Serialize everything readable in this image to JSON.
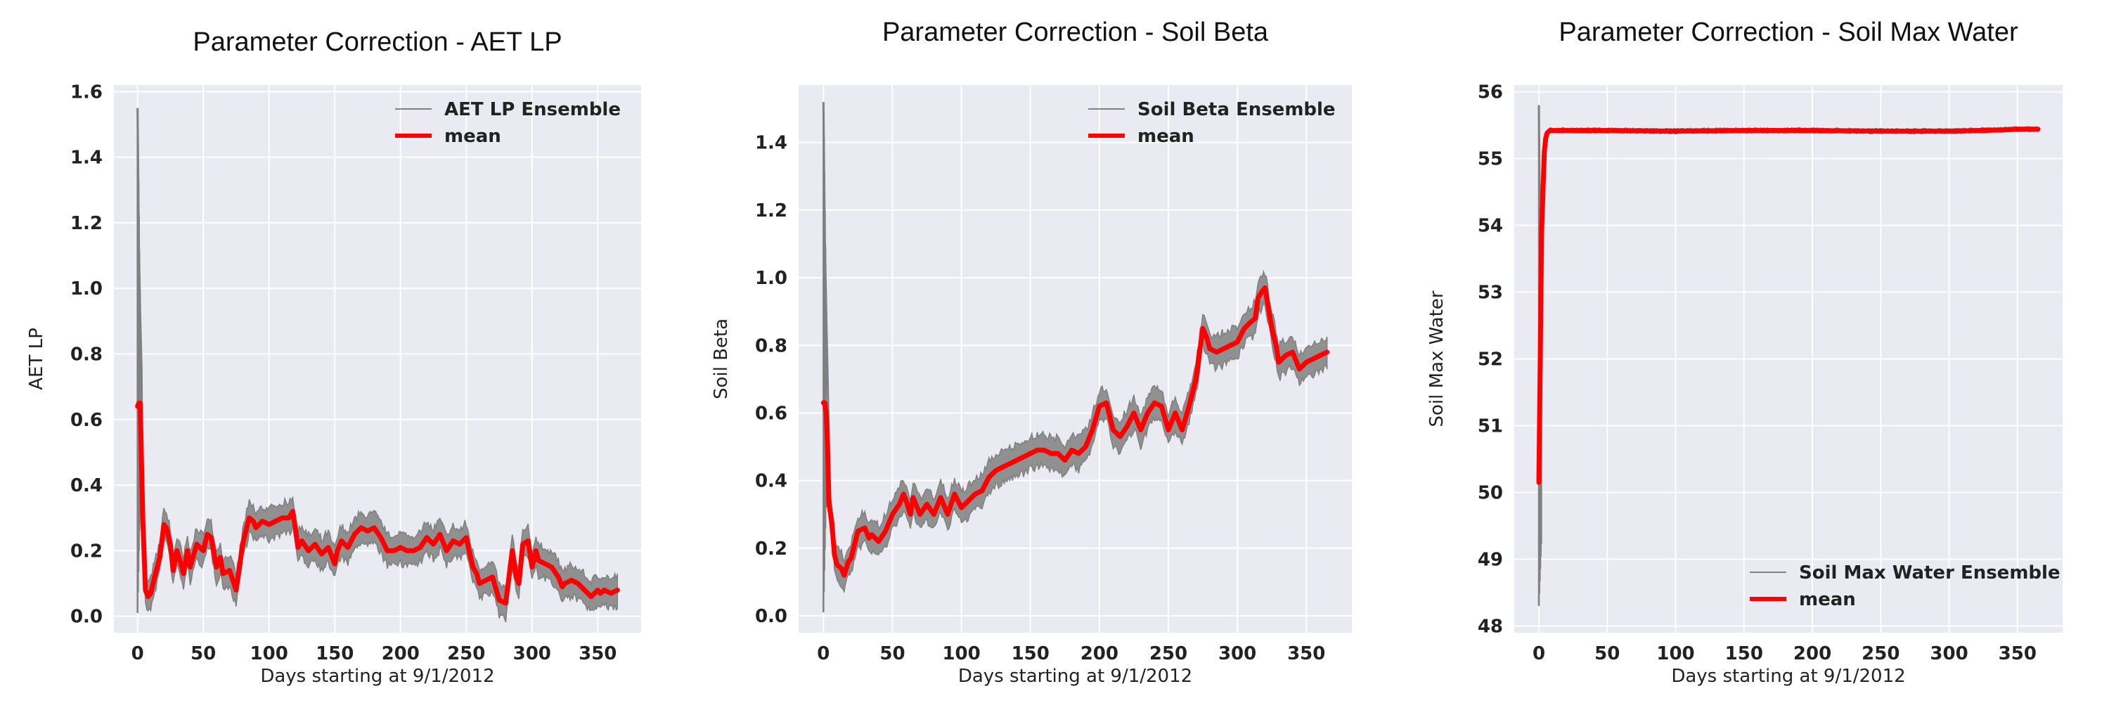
{
  "colors": {
    "panel_bg": "#eaeaf2",
    "grid": "#ffffff",
    "ensemble": "#808080",
    "mean": "#ff0000"
  },
  "chart_data": [
    {
      "type": "line",
      "title": "Parameter Correction - AET LP",
      "xlabel": "Days starting at 9/1/2012",
      "ylabel": "AET LP",
      "xlim": [
        -18,
        383
      ],
      "ylim": [
        -0.05,
        1.62
      ],
      "xticks": [
        0,
        50,
        100,
        150,
        200,
        250,
        300,
        350
      ],
      "yticks": [
        0.0,
        0.2,
        0.4,
        0.6,
        0.8,
        1.0,
        1.2,
        1.4,
        1.6
      ],
      "ytick_labels": [
        "0.0",
        "0.2",
        "0.4",
        "0.6",
        "0.8",
        "1.0",
        "1.2",
        "1.4",
        "1.6"
      ],
      "grid": true,
      "legend_position": "top-right",
      "spread": 0.035,
      "spike": {
        "min": 0.01,
        "max": 1.55
      },
      "series": [
        {
          "name": "AET LP Ensemble",
          "role": "ensemble"
        },
        {
          "name": "mean",
          "role": "mean",
          "x": [
            0,
            1,
            2,
            4,
            6,
            8,
            10,
            13,
            17,
            20,
            22,
            25,
            27,
            30,
            33,
            35,
            38,
            40,
            45,
            50,
            53,
            56,
            60,
            63,
            65,
            70,
            75,
            80,
            83,
            85,
            88,
            90,
            95,
            100,
            105,
            110,
            115,
            118,
            120,
            122,
            125,
            130,
            135,
            140,
            145,
            150,
            152,
            155,
            160,
            165,
            170,
            175,
            180,
            185,
            190,
            195,
            200,
            205,
            210,
            215,
            220,
            225,
            230,
            235,
            240,
            245,
            250,
            255,
            258,
            260,
            265,
            270,
            275,
            280,
            285,
            288,
            290,
            293,
            297,
            300,
            303,
            305,
            310,
            315,
            320,
            323,
            325,
            330,
            335,
            340,
            345,
            350,
            352,
            355,
            360,
            365
          ],
          "y": [
            0.64,
            0.65,
            0.65,
            0.3,
            0.08,
            0.06,
            0.07,
            0.12,
            0.18,
            0.28,
            0.27,
            0.22,
            0.14,
            0.2,
            0.16,
            0.13,
            0.2,
            0.15,
            0.22,
            0.2,
            0.25,
            0.24,
            0.15,
            0.18,
            0.13,
            0.14,
            0.08,
            0.22,
            0.27,
            0.3,
            0.29,
            0.27,
            0.29,
            0.28,
            0.29,
            0.3,
            0.3,
            0.32,
            0.27,
            0.21,
            0.23,
            0.2,
            0.22,
            0.19,
            0.21,
            0.16,
            0.2,
            0.23,
            0.21,
            0.25,
            0.27,
            0.26,
            0.27,
            0.24,
            0.2,
            0.2,
            0.21,
            0.2,
            0.2,
            0.21,
            0.24,
            0.22,
            0.25,
            0.2,
            0.23,
            0.22,
            0.24,
            0.15,
            0.13,
            0.1,
            0.11,
            0.12,
            0.05,
            0.04,
            0.2,
            0.12,
            0.1,
            0.22,
            0.23,
            0.15,
            0.2,
            0.17,
            0.16,
            0.15,
            0.12,
            0.09,
            0.1,
            0.11,
            0.1,
            0.08,
            0.06,
            0.08,
            0.07,
            0.08,
            0.07,
            0.08
          ]
        }
      ]
    },
    {
      "type": "line",
      "title": "Parameter Correction - Soil Beta",
      "xlabel": "Days starting at 9/1/2012",
      "ylabel": "Soil Beta",
      "xlim": [
        -18,
        383
      ],
      "ylim": [
        -0.05,
        1.57
      ],
      "xticks": [
        0,
        50,
        100,
        150,
        200,
        250,
        300,
        350
      ],
      "yticks": [
        0.0,
        0.2,
        0.4,
        0.6,
        0.8,
        1.0,
        1.2,
        1.4
      ],
      "ytick_labels": [
        "0.0",
        "0.2",
        "0.4",
        "0.6",
        "0.8",
        "1.0",
        "1.2",
        "1.4"
      ],
      "grid": true,
      "legend_position": "top-right",
      "spread": 0.035,
      "spike": {
        "min": 0.01,
        "max": 1.52
      },
      "series": [
        {
          "name": "Soil Beta Ensemble",
          "role": "ensemble"
        },
        {
          "name": "mean",
          "role": "mean",
          "x": [
            0,
            1,
            2,
            3,
            4,
            6,
            8,
            10,
            13,
            15,
            18,
            20,
            25,
            30,
            33,
            35,
            40,
            45,
            50,
            55,
            58,
            60,
            63,
            65,
            70,
            75,
            80,
            85,
            90,
            95,
            100,
            105,
            110,
            115,
            120,
            125,
            130,
            135,
            140,
            145,
            150,
            155,
            160,
            165,
            170,
            175,
            180,
            185,
            190,
            195,
            200,
            205,
            210,
            215,
            220,
            225,
            230,
            235,
            240,
            245,
            250,
            255,
            260,
            265,
            270,
            275,
            278,
            280,
            285,
            290,
            295,
            300,
            305,
            310,
            313,
            315,
            318,
            320,
            323,
            325,
            328,
            330,
            335,
            340,
            345,
            350,
            355,
            360,
            365
          ],
          "y": [
            0.63,
            0.63,
            0.6,
            0.5,
            0.33,
            0.28,
            0.18,
            0.15,
            0.14,
            0.12,
            0.16,
            0.17,
            0.25,
            0.26,
            0.23,
            0.24,
            0.22,
            0.25,
            0.3,
            0.33,
            0.36,
            0.34,
            0.3,
            0.35,
            0.3,
            0.33,
            0.3,
            0.35,
            0.3,
            0.36,
            0.32,
            0.34,
            0.36,
            0.37,
            0.41,
            0.43,
            0.44,
            0.45,
            0.46,
            0.47,
            0.48,
            0.49,
            0.49,
            0.48,
            0.48,
            0.46,
            0.49,
            0.48,
            0.5,
            0.55,
            0.62,
            0.63,
            0.55,
            0.53,
            0.56,
            0.6,
            0.55,
            0.6,
            0.63,
            0.62,
            0.55,
            0.6,
            0.55,
            0.62,
            0.7,
            0.85,
            0.82,
            0.79,
            0.78,
            0.79,
            0.8,
            0.81,
            0.85,
            0.87,
            0.88,
            0.94,
            0.96,
            0.97,
            0.9,
            0.85,
            0.8,
            0.75,
            0.77,
            0.78,
            0.73,
            0.75,
            0.76,
            0.77,
            0.78
          ]
        }
      ]
    },
    {
      "type": "line",
      "title": "Parameter Correction - Soil Max Water",
      "xlabel": "Days starting at 9/1/2012",
      "ylabel": "Soil Max Water",
      "xlim": [
        -18,
        383
      ],
      "ylim": [
        47.9,
        56.1
      ],
      "xticks": [
        0,
        50,
        100,
        150,
        200,
        250,
        300,
        350
      ],
      "yticks": [
        48,
        49,
        50,
        51,
        52,
        53,
        54,
        55,
        56
      ],
      "ytick_labels": [
        "48",
        "49",
        "50",
        "51",
        "52",
        "53",
        "54",
        "55",
        "56"
      ],
      "grid": true,
      "legend_position": "bottom-right",
      "spread": 0.025,
      "spike": {
        "min": 48.3,
        "max": 55.8
      },
      "series": [
        {
          "name": "Soil Max Water Ensemble",
          "role": "ensemble"
        },
        {
          "name": "mean",
          "role": "mean",
          "x": [
            0,
            1,
            2,
            3,
            4,
            5,
            6,
            8,
            10,
            15,
            20,
            50,
            100,
            150,
            200,
            250,
            300,
            340,
            350,
            365
          ],
          "y": [
            50.15,
            52.0,
            53.9,
            54.5,
            55.1,
            55.3,
            55.38,
            55.42,
            55.42,
            55.42,
            55.42,
            55.42,
            55.41,
            55.42,
            55.42,
            55.41,
            55.41,
            55.43,
            55.44,
            55.44
          ]
        }
      ]
    }
  ]
}
